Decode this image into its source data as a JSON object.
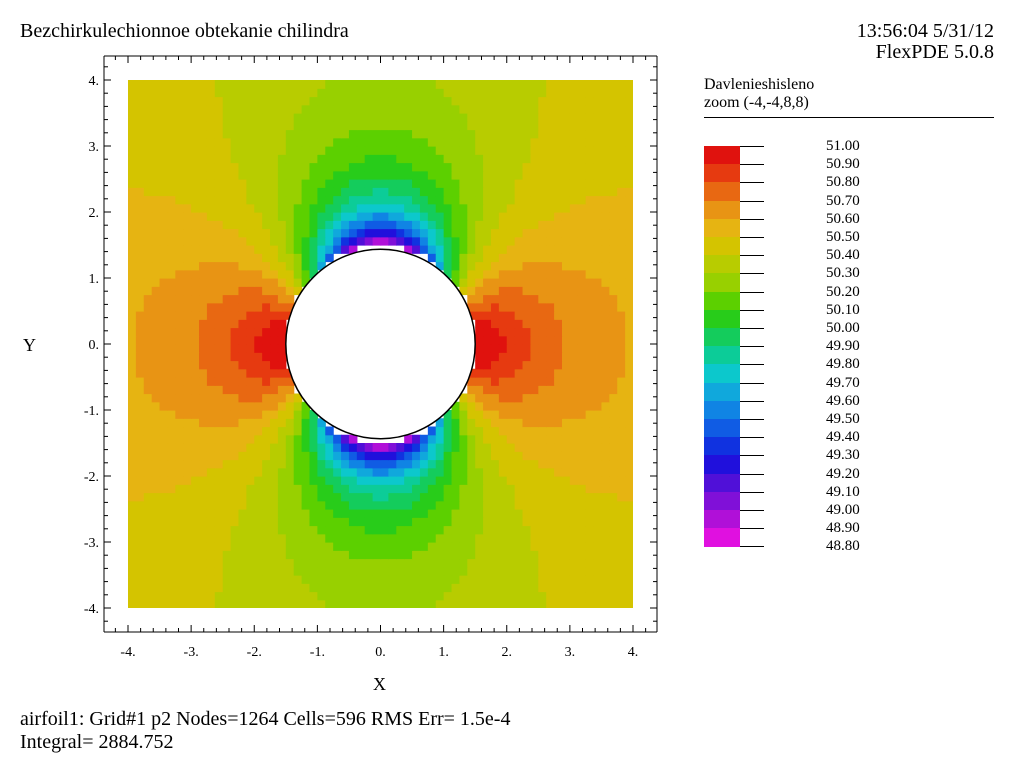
{
  "header": {
    "title": "Bezchirkulechionnoe obtekanie chilindra",
    "timestamp": "13:56:04 5/31/12",
    "version": "FlexPDE 5.0.8"
  },
  "legend": {
    "title": "Davlenieshisleno",
    "zoom": "zoom (-4,-4,8,8)",
    "entries": [
      {
        "label": "51.00",
        "color": "#e0120e"
      },
      {
        "label": "50.90",
        "color": "#e63a10"
      },
      {
        "label": "50.80",
        "color": "#e86812"
      },
      {
        "label": "50.70",
        "color": "#e89414"
      },
      {
        "label": "50.60",
        "color": "#e6b412"
      },
      {
        "label": "50.50",
        "color": "#d4c400"
      },
      {
        "label": "50.40",
        "color": "#b8cc00"
      },
      {
        "label": "50.30",
        "color": "#98d000"
      },
      {
        "label": "50.20",
        "color": "#5cd000"
      },
      {
        "label": "50.10",
        "color": "#28cc1a"
      },
      {
        "label": "50.00",
        "color": "#14cc5c"
      },
      {
        "label": "49.90",
        "color": "#0ccc98"
      },
      {
        "label": "49.80",
        "color": "#0cc8cc"
      },
      {
        "label": "49.70",
        "color": "#10a8dc"
      },
      {
        "label": "49.60",
        "color": "#1084e4"
      },
      {
        "label": "49.50",
        "color": "#105ce4"
      },
      {
        "label": "49.40",
        "color": "#1032e0"
      },
      {
        "label": "49.30",
        "color": "#2010dc"
      },
      {
        "label": "49.20",
        "color": "#5010d8"
      },
      {
        "label": "49.10",
        "color": "#8010d8"
      },
      {
        "label": "49.00",
        "color": "#b010d8"
      },
      {
        "label": "48.90",
        "color": "#e010e0"
      }
    ],
    "bottom_label": "48.80"
  },
  "chart_data": {
    "type": "heatmap",
    "title": "Bezchirkulechionnoe obtekanie chilindra",
    "xlabel": "X",
    "ylabel": "Y",
    "xlim": [
      -4,
      4
    ],
    "ylim": [
      -4,
      4
    ],
    "x_ticks": [
      "-4.",
      "-3.",
      "-2.",
      "-1.",
      "0.",
      "1.",
      "2.",
      "3.",
      "4."
    ],
    "y_ticks": [
      "4.",
      "3.",
      "2.",
      "1.",
      "0.",
      "-1.",
      "-2.",
      "-3.",
      "-4."
    ],
    "variable": "Davlenieshisleno",
    "value_range": [
      48.8,
      51.0
    ],
    "levels": [
      51.0,
      50.9,
      50.8,
      50.7,
      50.6,
      50.5,
      50.4,
      50.3,
      50.2,
      50.1,
      50.0,
      49.9,
      49.8,
      49.7,
      49.6,
      49.5,
      49.4,
      49.3,
      49.2,
      49.1,
      49.0,
      48.9,
      48.8
    ],
    "obstacle": {
      "shape": "circle",
      "center": [
        0,
        0
      ],
      "radius": 1.5
    },
    "grid": false
  },
  "footer": {
    "line1": "airfoil1:  Grid#1  p2  Nodes=1264 Cells=596 RMS Err= 1.5e-4",
    "line2": "Integral=  2884.752"
  }
}
